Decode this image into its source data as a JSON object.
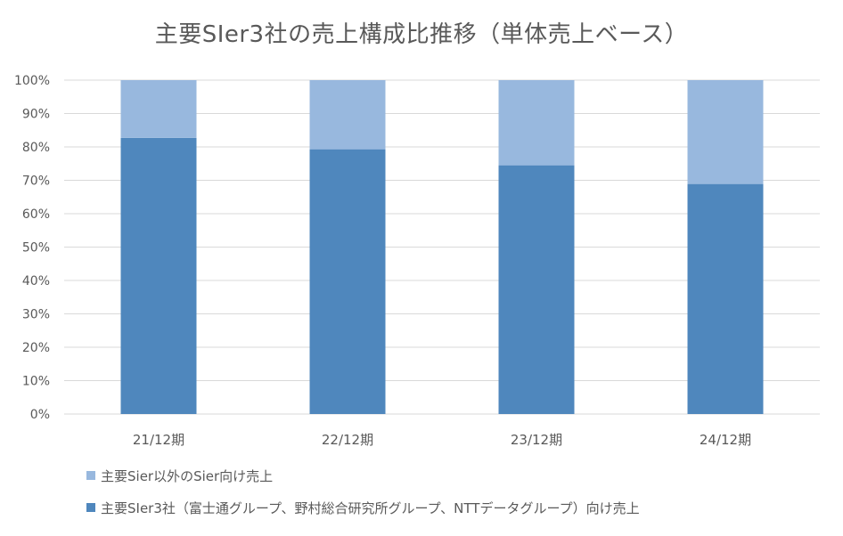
{
  "chart_data": {
    "type": "bar",
    "stacked": true,
    "title": "主要SIer3社の売上構成比推移（単体売上ベース）",
    "xlabel": "",
    "ylabel": "",
    "ylim": [
      0,
      100
    ],
    "y_ticks": [
      0,
      10,
      20,
      30,
      40,
      50,
      60,
      70,
      80,
      90,
      100
    ],
    "y_tick_labels": [
      "0%",
      "10%",
      "20%",
      "30%",
      "40%",
      "50%",
      "60%",
      "70%",
      "80%",
      "90%",
      "100%"
    ],
    "categories": [
      "21/12期",
      "22/12期",
      "23/12期",
      "24/12期"
    ],
    "grid": true,
    "legend_position": "bottom-left",
    "series": [
      {
        "name": "主要SIer3社（富士通グループ、野村総合研究所グループ、NTTデータグループ）向け売上",
        "values": [
          82.7,
          79.3,
          74.5,
          68.9
        ],
        "color": "#4f87bd"
      },
      {
        "name": "主要Sier以外のSier向け売上",
        "values": [
          17.3,
          20.7,
          25.5,
          31.1
        ],
        "color": "#98b8de"
      }
    ]
  },
  "legend": {
    "items": [
      {
        "label": "主要Sier以外のSier向け売上",
        "color": "#98b8de"
      },
      {
        "label": "主要SIer3社（富士通グループ、野村総合研究所グループ、NTTデータグループ）向け売上",
        "color": "#4f87bd"
      }
    ]
  },
  "colors": {
    "gridline": "#d9d9d9",
    "axis_text": "#595959"
  }
}
